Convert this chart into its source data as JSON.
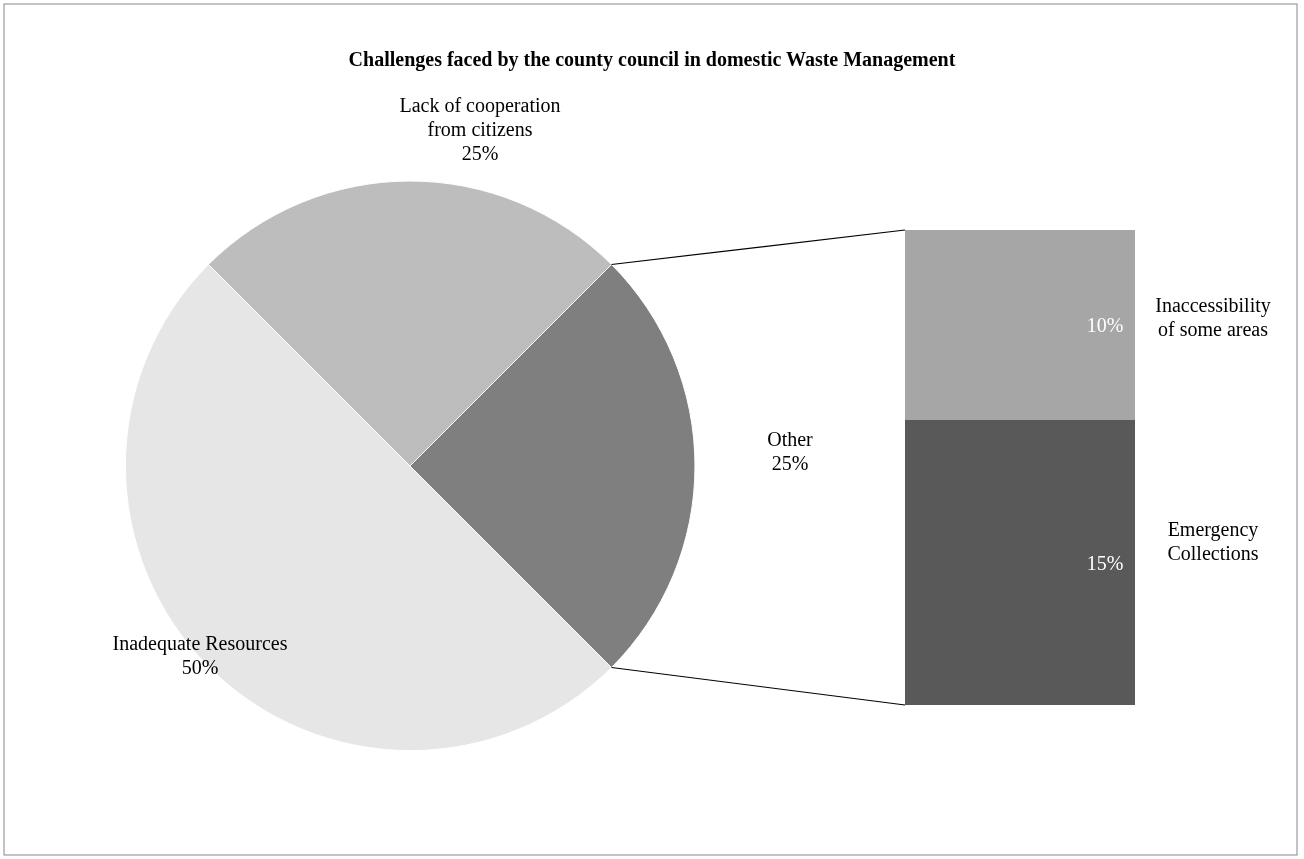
{
  "chart_data": [
    {
      "type": "pie",
      "title": "Challenges faced by the county council in domestic Waste Management",
      "categories": [
        "Inadequate Resources",
        "Lack of cooperation from citizens",
        "Other"
      ],
      "values": [
        50,
        25,
        25
      ],
      "colors": [
        "#e6e6e6",
        "#bdbdbd",
        "#7f7f7f"
      ],
      "value_labels": [
        "50%",
        "25%",
        "25%"
      ]
    },
    {
      "type": "bar",
      "stacked": true,
      "categories": [
        null
      ],
      "series": [
        {
          "name": "Emergency Collections",
          "color": "#595959",
          "values": [
            15
          ],
          "value_labels": [
            "15%"
          ]
        },
        {
          "name": "Inaccessibility of some areas",
          "color": "#a6a6a6",
          "values": [
            10
          ],
          "value_labels": [
            "10%"
          ]
        }
      ]
    }
  ]
}
